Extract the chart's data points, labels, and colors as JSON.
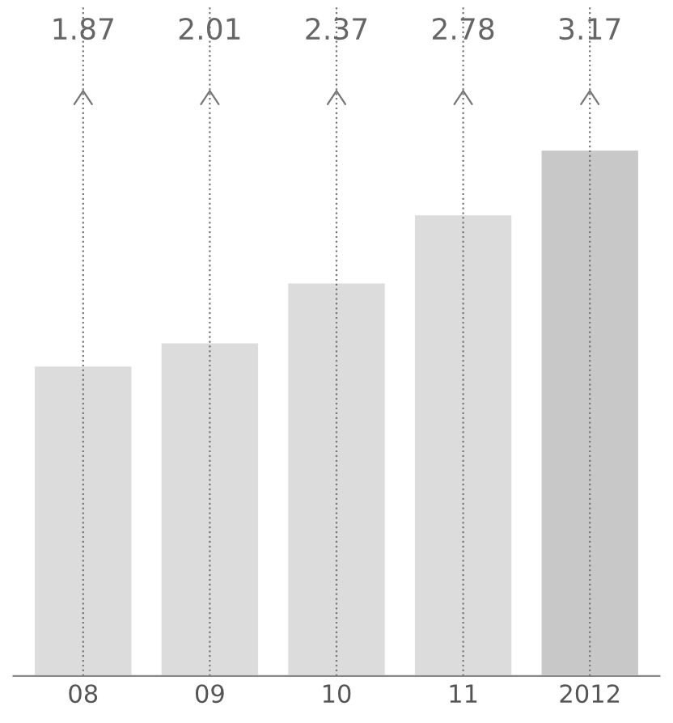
{
  "chart_data": {
    "type": "bar",
    "categories": [
      "08",
      "09",
      "10",
      "11",
      "2012"
    ],
    "values": [
      1.87,
      2.01,
      2.37,
      2.78,
      3.17
    ],
    "colors": [
      "#dcdcdc",
      "#dcdcdc",
      "#dcdcdc",
      "#dcdcdc",
      "#c8c8c8"
    ],
    "data_labels": true,
    "grid": "x",
    "tick_labels": "x"
  }
}
